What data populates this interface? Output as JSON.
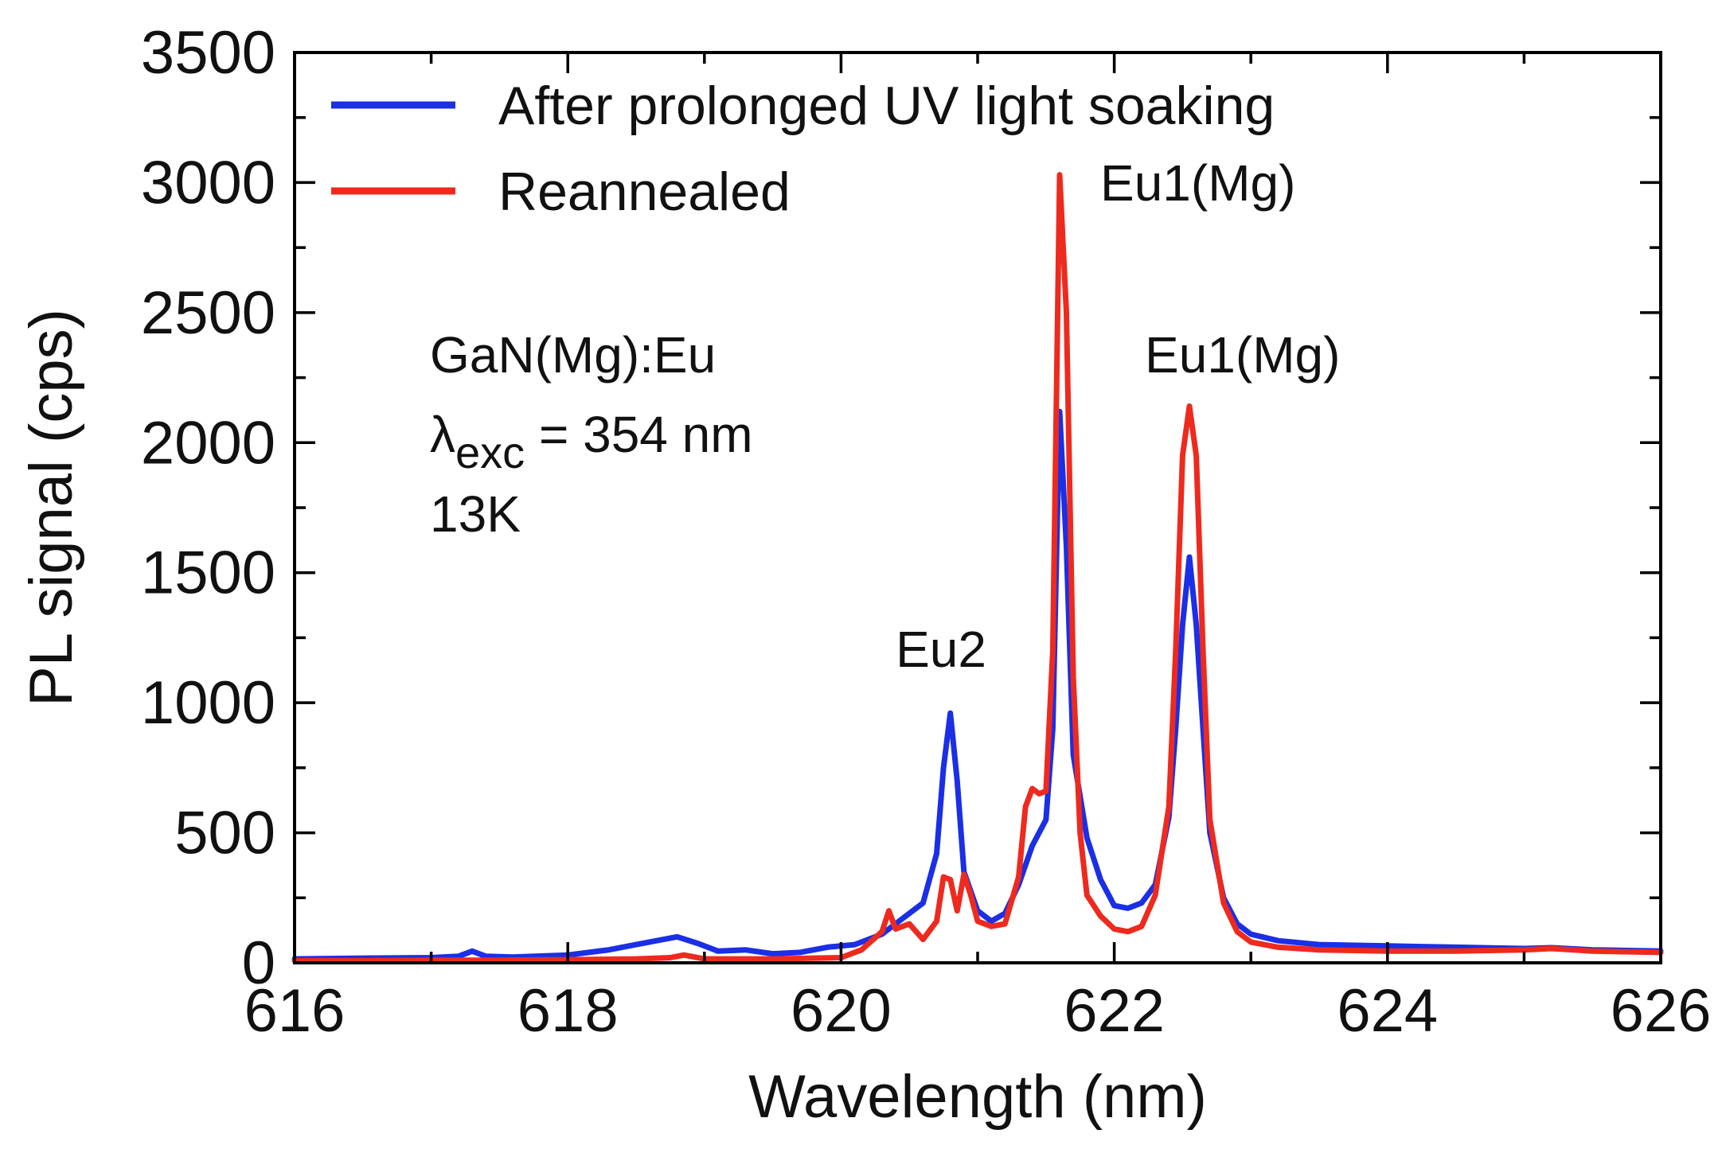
{
  "chart_data": {
    "type": "line",
    "xlabel": "Wavelength (nm)",
    "ylabel": "PL signal (cps)",
    "xlim": [
      616,
      626
    ],
    "ylim": [
      0,
      3500
    ],
    "xticks": [
      616,
      618,
      620,
      622,
      624,
      626
    ],
    "yticks": [
      0,
      500,
      1000,
      1500,
      2000,
      2500,
      3000,
      3500
    ],
    "legend_position": "top-left",
    "grid": false,
    "series": [
      {
        "name": "After prolonged UV light soaking",
        "color": "#1a2fe6",
        "x": [
          616.0,
          616.5,
          617.0,
          617.2,
          617.3,
          617.4,
          617.6,
          618.0,
          618.3,
          618.5,
          618.7,
          618.8,
          618.95,
          619.1,
          619.3,
          619.5,
          619.7,
          619.9,
          620.1,
          620.3,
          620.45,
          620.6,
          620.7,
          620.75,
          620.8,
          620.85,
          620.9,
          621.0,
          621.1,
          621.2,
          621.3,
          621.4,
          621.5,
          621.55,
          621.6,
          621.65,
          621.7,
          621.8,
          621.9,
          622.0,
          622.1,
          622.2,
          622.3,
          622.4,
          622.45,
          622.5,
          622.55,
          622.6,
          622.65,
          622.7,
          622.8,
          622.9,
          623.0,
          623.2,
          623.5,
          624.0,
          624.5,
          625.0,
          625.2,
          625.5,
          626.0
        ],
        "y": [
          15,
          18,
          20,
          25,
          45,
          25,
          22,
          30,
          50,
          70,
          90,
          100,
          75,
          45,
          50,
          35,
          40,
          60,
          70,
          110,
          170,
          230,
          420,
          750,
          960,
          700,
          350,
          200,
          160,
          190,
          300,
          450,
          550,
          900,
          2120,
          1600,
          800,
          480,
          320,
          220,
          210,
          230,
          300,
          560,
          900,
          1300,
          1560,
          1300,
          900,
          500,
          250,
          150,
          110,
          85,
          70,
          65,
          60,
          55,
          58,
          50,
          45
        ]
      },
      {
        "name": "Reannealed",
        "color": "#ee2a1e",
        "x": [
          616.0,
          616.5,
          617.0,
          617.5,
          618.0,
          618.5,
          618.75,
          618.85,
          619.0,
          619.5,
          620.0,
          620.15,
          620.3,
          620.35,
          620.4,
          620.5,
          620.6,
          620.7,
          620.75,
          620.8,
          620.85,
          620.9,
          620.95,
          621.0,
          621.1,
          621.2,
          621.3,
          621.35,
          621.4,
          621.45,
          621.5,
          621.55,
          621.6,
          621.65,
          621.7,
          621.75,
          621.8,
          621.9,
          622.0,
          622.1,
          622.2,
          622.3,
          622.4,
          622.45,
          622.5,
          622.55,
          622.6,
          622.65,
          622.7,
          622.8,
          622.9,
          623.0,
          623.2,
          623.5,
          624.0,
          624.5,
          625.0,
          625.2,
          625.5,
          626.0
        ],
        "y": [
          8,
          8,
          10,
          10,
          12,
          15,
          20,
          30,
          15,
          15,
          20,
          50,
          120,
          200,
          130,
          150,
          90,
          160,
          330,
          320,
          200,
          340,
          260,
          160,
          140,
          150,
          330,
          600,
          670,
          650,
          660,
          1200,
          3030,
          2500,
          1100,
          500,
          260,
          180,
          130,
          120,
          140,
          260,
          600,
          1200,
          1950,
          2140,
          1950,
          1200,
          550,
          230,
          120,
          80,
          60,
          50,
          45,
          45,
          50,
          55,
          45,
          40
        ]
      }
    ],
    "annotations": {
      "sample": "GaN(Mg):Eu",
      "lambda_symbol": "λ",
      "lambda_subscript": "exc",
      "lambda_value": " = 354 nm",
      "temperature": "13K",
      "peak_eu2": "Eu2",
      "peak_eu1_a": "Eu1(Mg)",
      "peak_eu1_b": "Eu1(Mg)"
    }
  }
}
